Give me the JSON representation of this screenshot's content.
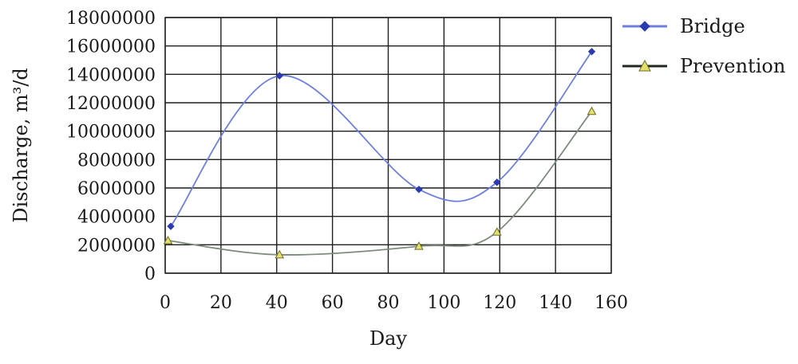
{
  "chart_data": {
    "type": "line",
    "title": "",
    "xlabel": "Day",
    "ylabel": "Discharge, m³/d",
    "xlim": [
      0,
      160
    ],
    "ylim": [
      0,
      18000000
    ],
    "x_ticks": [
      0,
      20,
      40,
      60,
      80,
      100,
      120,
      140,
      160
    ],
    "y_ticks": [
      0,
      2000000,
      4000000,
      6000000,
      8000000,
      10000000,
      12000000,
      14000000,
      16000000,
      18000000
    ],
    "x_tick_labels": [
      "0",
      "20",
      "40",
      "60",
      "80",
      "100",
      "120",
      "140",
      "160"
    ],
    "y_tick_labels": [
      "0",
      "2000000",
      "4000000",
      "6000000",
      "8000000",
      "10000000",
      "12000000",
      "14000000",
      "16000000",
      "18000000"
    ],
    "grid": true,
    "smooth": true,
    "legend_position": "right-top",
    "series": [
      {
        "name": "Bridge",
        "color": "#6e7fe0",
        "marker": "diamond",
        "marker_color": "#2a3bb0",
        "x": [
          2,
          41,
          91,
          119,
          153
        ],
        "y": [
          3300000,
          13900000,
          5900000,
          6400000,
          15600000
        ]
      },
      {
        "name": "Prevention",
        "color": "#7d8a7d",
        "marker": "triangle",
        "marker_color": "#e3df6a",
        "x": [
          1,
          41,
          91,
          119,
          153
        ],
        "y": [
          2300000,
          1300000,
          1900000,
          2900000,
          11400000
        ]
      }
    ]
  }
}
